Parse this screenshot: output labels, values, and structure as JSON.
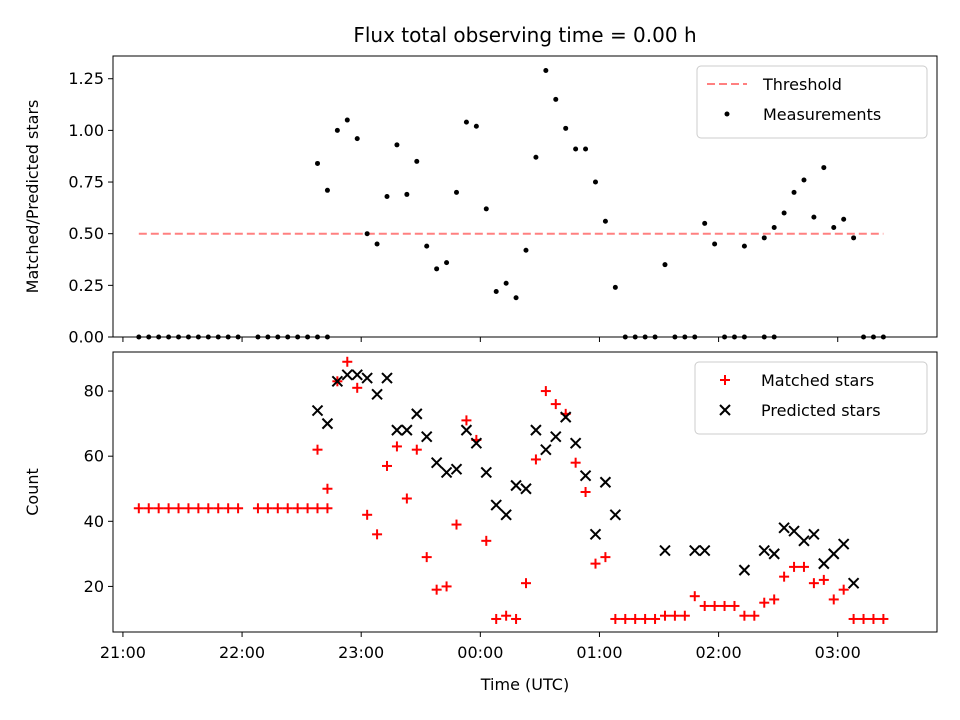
{
  "chart_data": [
    {
      "type": "scatter",
      "title": "Flux total observing time = 0.00 h",
      "xlabel": "",
      "ylabel": "Matched/Predicted stars",
      "ylim": [
        0,
        1.36
      ],
      "xlim": [
        "20:55",
        "03:50"
      ],
      "yticks": [
        "0.00",
        "0.25",
        "0.50",
        "0.75",
        "1.00",
        "1.25"
      ],
      "ytick_values": [
        0,
        0.25,
        0.5,
        0.75,
        1.0,
        1.25
      ],
      "grid": false,
      "legend_position": "top-right",
      "threshold": {
        "name": "Threshold",
        "value": 0.5,
        "x_start": "21:08",
        "x_end": "03:23",
        "color": "#ff8080"
      },
      "series": [
        {
          "name": "Measurements",
          "color": "#000000",
          "points": [
            [
              "21:08",
              0
            ],
            [
              "21:13",
              0
            ],
            [
              "21:18",
              0
            ],
            [
              "21:23",
              0
            ],
            [
              "21:28",
              0
            ],
            [
              "21:33",
              0
            ],
            [
              "21:38",
              0
            ],
            [
              "21:43",
              0
            ],
            [
              "21:48",
              0
            ],
            [
              "21:53",
              0
            ],
            [
              "21:58",
              0
            ],
            [
              "22:08",
              0
            ],
            [
              "22:13",
              0
            ],
            [
              "22:18",
              0
            ],
            [
              "22:23",
              0
            ],
            [
              "22:28",
              0
            ],
            [
              "22:33",
              0
            ],
            [
              "22:38",
              0
            ],
            [
              "22:43",
              0
            ],
            [
              "22:38",
              0.84
            ],
            [
              "22:43",
              0.71
            ],
            [
              "22:48",
              1.0
            ],
            [
              "22:53",
              1.05
            ],
            [
              "22:58",
              0.96
            ],
            [
              "23:03",
              0.5
            ],
            [
              "23:08",
              0.45
            ],
            [
              "23:13",
              0.68
            ],
            [
              "23:18",
              0.93
            ],
            [
              "23:23",
              0.69
            ],
            [
              "23:28",
              0.85
            ],
            [
              "23:33",
              0.44
            ],
            [
              "23:38",
              0.33
            ],
            [
              "23:43",
              0.36
            ],
            [
              "23:48",
              0.7
            ],
            [
              "23:53",
              1.04
            ],
            [
              "23:58",
              1.02
            ],
            [
              "00:03",
              0.62
            ],
            [
              "00:08",
              0.22
            ],
            [
              "00:13",
              0.26
            ],
            [
              "00:18",
              0.19
            ],
            [
              "00:23",
              0.42
            ],
            [
              "00:28",
              0.87
            ],
            [
              "00:33",
              1.29
            ],
            [
              "00:38",
              1.15
            ],
            [
              "00:43",
              1.01
            ],
            [
              "00:48",
              0.91
            ],
            [
              "00:53",
              0.91
            ],
            [
              "00:58",
              0.75
            ],
            [
              "01:03",
              0.56
            ],
            [
              "01:08",
              0.24
            ],
            [
              "01:13",
              0
            ],
            [
              "01:18",
              0
            ],
            [
              "01:23",
              0
            ],
            [
              "01:28",
              0
            ],
            [
              "01:38",
              0
            ],
            [
              "01:43",
              0
            ],
            [
              "01:48",
              0
            ],
            [
              "01:33",
              0.35
            ],
            [
              "01:53",
              0.55
            ],
            [
              "01:58",
              0.45
            ],
            [
              "02:03",
              0
            ],
            [
              "02:08",
              0
            ],
            [
              "02:13",
              0
            ],
            [
              "02:23",
              0
            ],
            [
              "02:28",
              0
            ],
            [
              "02:13",
              0.44
            ],
            [
              "02:23",
              0.48
            ],
            [
              "02:28",
              0.53
            ],
            [
              "02:33",
              0.6
            ],
            [
              "02:38",
              0.7
            ],
            [
              "02:43",
              0.76
            ],
            [
              "02:48",
              0.58
            ],
            [
              "02:53",
              0.82
            ],
            [
              "02:58",
              0.53
            ],
            [
              "03:03",
              0.57
            ],
            [
              "03:08",
              0.48
            ],
            [
              "03:13",
              0
            ],
            [
              "03:18",
              0
            ],
            [
              "03:23",
              0
            ]
          ]
        }
      ]
    },
    {
      "type": "scatter",
      "title": "",
      "xlabel": "Time (UTC)",
      "ylabel": "Count",
      "ylim": [
        6,
        92
      ],
      "xlim": [
        "20:55",
        "03:50"
      ],
      "yticks": [
        "20",
        "40",
        "60",
        "80"
      ],
      "ytick_values": [
        20,
        40,
        60,
        80
      ],
      "xticks": [
        "21:00",
        "22:00",
        "23:00",
        "00:00",
        "01:00",
        "02:00",
        "03:00"
      ],
      "grid": false,
      "legend_position": "top-right",
      "series": [
        {
          "name": "Matched stars",
          "marker": "+",
          "color": "#ff0000",
          "points": [
            [
              "21:08",
              44
            ],
            [
              "21:13",
              44
            ],
            [
              "21:18",
              44
            ],
            [
              "21:23",
              44
            ],
            [
              "21:28",
              44
            ],
            [
              "21:33",
              44
            ],
            [
              "21:38",
              44
            ],
            [
              "21:43",
              44
            ],
            [
              "21:48",
              44
            ],
            [
              "21:53",
              44
            ],
            [
              "21:58",
              44
            ],
            [
              "22:08",
              44
            ],
            [
              "22:13",
              44
            ],
            [
              "22:18",
              44
            ],
            [
              "22:23",
              44
            ],
            [
              "22:28",
              44
            ],
            [
              "22:33",
              44
            ],
            [
              "22:38",
              44
            ],
            [
              "22:43",
              44
            ],
            [
              "22:38",
              62
            ],
            [
              "22:43",
              50
            ],
            [
              "22:48",
              83
            ],
            [
              "22:53",
              89
            ],
            [
              "22:58",
              81
            ],
            [
              "23:03",
              42
            ],
            [
              "23:08",
              36
            ],
            [
              "23:13",
              57
            ],
            [
              "23:18",
              63
            ],
            [
              "23:23",
              47
            ],
            [
              "23:28",
              62
            ],
            [
              "23:33",
              29
            ],
            [
              "23:38",
              19
            ],
            [
              "23:43",
              20
            ],
            [
              "23:48",
              39
            ],
            [
              "23:53",
              71
            ],
            [
              "23:58",
              65
            ],
            [
              "00:03",
              34
            ],
            [
              "00:08",
              10
            ],
            [
              "00:13",
              11
            ],
            [
              "00:18",
              10
            ],
            [
              "00:23",
              21
            ],
            [
              "00:28",
              59
            ],
            [
              "00:33",
              80
            ],
            [
              "00:38",
              76
            ],
            [
              "00:43",
              73
            ],
            [
              "00:48",
              58
            ],
            [
              "00:53",
              49
            ],
            [
              "00:58",
              27
            ],
            [
              "01:03",
              29
            ],
            [
              "01:08",
              10
            ],
            [
              "01:13",
              10
            ],
            [
              "01:18",
              10
            ],
            [
              "01:23",
              10
            ],
            [
              "01:28",
              10
            ],
            [
              "01:33",
              11
            ],
            [
              "01:38",
              11
            ],
            [
              "01:43",
              11
            ],
            [
              "01:48",
              17
            ],
            [
              "01:53",
              14
            ],
            [
              "01:58",
              14
            ],
            [
              "02:03",
              14
            ],
            [
              "02:08",
              14
            ],
            [
              "02:13",
              11
            ],
            [
              "02:18",
              11
            ],
            [
              "02:23",
              15
            ],
            [
              "02:28",
              16
            ],
            [
              "02:33",
              23
            ],
            [
              "02:38",
              26
            ],
            [
              "02:43",
              26
            ],
            [
              "02:48",
              21
            ],
            [
              "02:53",
              22
            ],
            [
              "02:58",
              16
            ],
            [
              "03:03",
              19
            ],
            [
              "03:08",
              10
            ],
            [
              "03:13",
              10
            ],
            [
              "03:18",
              10
            ],
            [
              "03:23",
              10
            ]
          ]
        },
        {
          "name": "Predicted stars",
          "marker": "x",
          "color": "#000000",
          "points": [
            [
              "22:38",
              74
            ],
            [
              "22:43",
              70
            ],
            [
              "22:48",
              83
            ],
            [
              "22:53",
              85
            ],
            [
              "22:58",
              85
            ],
            [
              "23:03",
              84
            ],
            [
              "23:08",
              79
            ],
            [
              "23:13",
              84
            ],
            [
              "23:18",
              68
            ],
            [
              "23:23",
              68
            ],
            [
              "23:28",
              73
            ],
            [
              "23:33",
              66
            ],
            [
              "23:38",
              58
            ],
            [
              "23:43",
              55
            ],
            [
              "23:48",
              56
            ],
            [
              "23:53",
              68
            ],
            [
              "23:58",
              64
            ],
            [
              "00:03",
              55
            ],
            [
              "00:08",
              45
            ],
            [
              "00:13",
              42
            ],
            [
              "00:18",
              51
            ],
            [
              "00:23",
              50
            ],
            [
              "00:28",
              68
            ],
            [
              "00:33",
              62
            ],
            [
              "00:38",
              66
            ],
            [
              "00:43",
              72
            ],
            [
              "00:48",
              64
            ],
            [
              "00:53",
              54
            ],
            [
              "00:58",
              36
            ],
            [
              "01:03",
              52
            ],
            [
              "01:08",
              42
            ],
            [
              "01:33",
              31
            ],
            [
              "01:48",
              31
            ],
            [
              "01:53",
              31
            ],
            [
              "02:13",
              25
            ],
            [
              "02:23",
              31
            ],
            [
              "02:28",
              30
            ],
            [
              "02:33",
              38
            ],
            [
              "02:38",
              37
            ],
            [
              "02:43",
              34
            ],
            [
              "02:48",
              36
            ],
            [
              "02:53",
              27
            ],
            [
              "02:58",
              30
            ],
            [
              "03:03",
              33
            ],
            [
              "03:08",
              21
            ]
          ]
        }
      ]
    }
  ]
}
